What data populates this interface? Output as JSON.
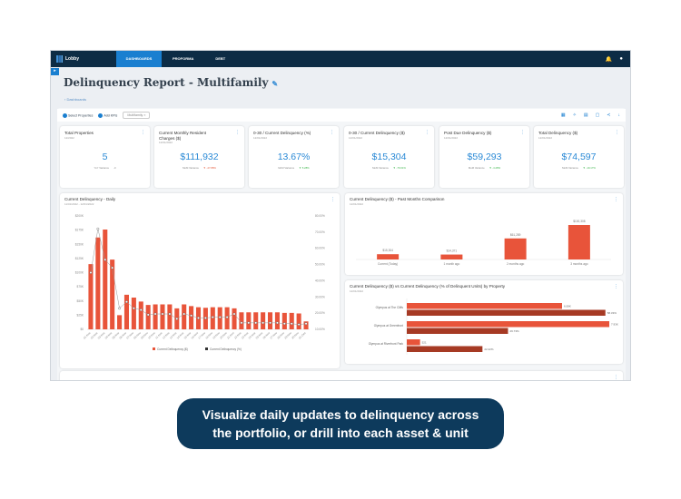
{
  "nav": {
    "brand": "Lobby",
    "brand_sub": "CRE",
    "items": [
      "DASHBOARDS",
      "PROFORMA",
      "DEBT"
    ],
    "user_caret": "⌄"
  },
  "page": {
    "title": "Delinquency Report - Multifamily",
    "breadcrumb": "‹ Dashboards"
  },
  "toolbar": {
    "select_properties": "Select Properties",
    "add_kpis": "Add KPIs",
    "filter_chip": "Multifamily ×"
  },
  "kpis": [
    {
      "title": "Total Properties",
      "date": "12/2022",
      "value": "5",
      "variance_label": "YoY Variance",
      "variance": "-0"
    },
    {
      "title": "Current Monthly Resident Charges ($)",
      "date": "12/01/2022",
      "value": "$111,932",
      "variance_label": "MoM Variance",
      "variance": "▼ -47.88%",
      "color": "#e45a3b"
    },
    {
      "title": "0-30 / Current Delinquency (%)",
      "date": "12/01/2022",
      "value": "13.67%",
      "variance_label": "MoM Variance",
      "variance": "▼ 5.28%",
      "color": "#3bb54a"
    },
    {
      "title": "0-30 / Current Delinquency ($)",
      "date": "12/01/2022",
      "value": "$15,304",
      "variance_label": "MoM Variance",
      "variance": "▼ -76.61%",
      "color": "#3bb54a"
    },
    {
      "title": "Post Due Delinquency ($)",
      "date": "12/01/2022",
      "value": "$59,293",
      "variance_label": "MoM Variance",
      "variance": "▼ -4.28%",
      "color": "#3bb54a"
    },
    {
      "title": "Total Delinquency ($)",
      "date": "12/01/2022",
      "value": "$74,597",
      "variance_label": "MoM Variance",
      "variance": "▼ -19.17%",
      "color": "#3bb54a"
    }
  ],
  "chart_data": [
    {
      "type": "bar+line",
      "title": "Current Delinquency - Daily",
      "subtitle": "11/01/2022 - 12/01/2022",
      "categories": [
        "01-Nov",
        "02-Nov",
        "03-Nov",
        "04-Nov",
        "05-Nov",
        "06-Nov",
        "07-Nov",
        "08-Nov",
        "09-Nov",
        "10-Nov",
        "11-Nov",
        "12-Nov",
        "13-Nov",
        "14-Nov",
        "15-Nov",
        "16-Nov",
        "17-Nov",
        "18-Nov",
        "19-Nov",
        "20-Nov",
        "21-Nov",
        "22-Nov",
        "23-Nov",
        "24-Nov",
        "25-Nov",
        "26-Nov",
        "27-Nov",
        "28-Nov",
        "29-Nov",
        "30-Nov",
        "01-Dec"
      ],
      "series": [
        {
          "name": "Current Delinquency ($)",
          "color": "#e8543a",
          "values": [
            115000,
            162000,
            176000,
            123000,
            25000,
            61000,
            56000,
            49000,
            43000,
            44000,
            44000,
            44000,
            37000,
            44000,
            41000,
            39000,
            38000,
            39000,
            39000,
            39000,
            37000,
            30000,
            30000,
            30000,
            30000,
            30000,
            30000,
            29000,
            29000,
            28000,
            14000
          ]
        },
        {
          "name": "Current Delinquency (%)",
          "color": "#333333",
          "values": [
            45,
            72,
            53,
            48,
            23,
            27,
            23,
            22,
            19,
            19.5,
            19.5,
            19.5,
            16.5,
            19.5,
            18.5,
            17,
            17,
            17.5,
            17.5,
            17.5,
            19.5,
            14,
            14,
            14,
            14,
            14,
            14,
            13.5,
            13.5,
            13,
            13.5
          ]
        }
      ],
      "y_left": {
        "ticks": [
          "$0",
          "$25K",
          "$50K",
          "$75K",
          "$100K",
          "$125K",
          "$150K",
          "$175K",
          "$200K"
        ],
        "range": [
          0,
          200000
        ]
      },
      "y_right": {
        "ticks": [
          "10.00%",
          "20.00%",
          "30.00%",
          "40.00%",
          "50.00%",
          "60.00%",
          "70.00%",
          "80.00%"
        ],
        "range": [
          10,
          80
        ]
      },
      "legend": "bottom"
    },
    {
      "type": "bar",
      "title": "Current Delinquency ($) - Past Months Comparison",
      "subtitle": "12/01/2022",
      "categories": [
        "Current (Today)",
        "1 month ago",
        "2 months ago",
        "3 months ago"
      ],
      "values": [
        15304,
        14371,
        61289,
        100308
      ],
      "labels": [
        "$15,304",
        "$14,371",
        "$61,289",
        "$100,308"
      ]
    },
    {
      "type": "hbar",
      "title": "Current Delinquency ($) vs Current Delinquency (% of Delinquent Units) by Property",
      "subtitle": "12/01/2022",
      "categories": [
        "Olympus at The Cliffs",
        "Olympus at Greenfront",
        "Olympus at Riverfront Park"
      ],
      "series": [
        {
          "name": "Current Delinquency ($)",
          "color": "#e8543a",
          "values": [
            6080,
            7930,
            521
          ],
          "labels": [
            "6.08K",
            "7.93K",
            "521"
          ]
        },
        {
          "name": "Current Delinquency (%)",
          "color": "#a63a24",
          "values": [
            58.33,
            29.73,
            22.22
          ],
          "labels": [
            "58.33%",
            "29.73%",
            "22.22%"
          ]
        }
      ]
    }
  ],
  "banner": {
    "line1": "Visualize daily updates to delinquency across",
    "line2": "the portfolio, or drill into each asset & unit"
  }
}
